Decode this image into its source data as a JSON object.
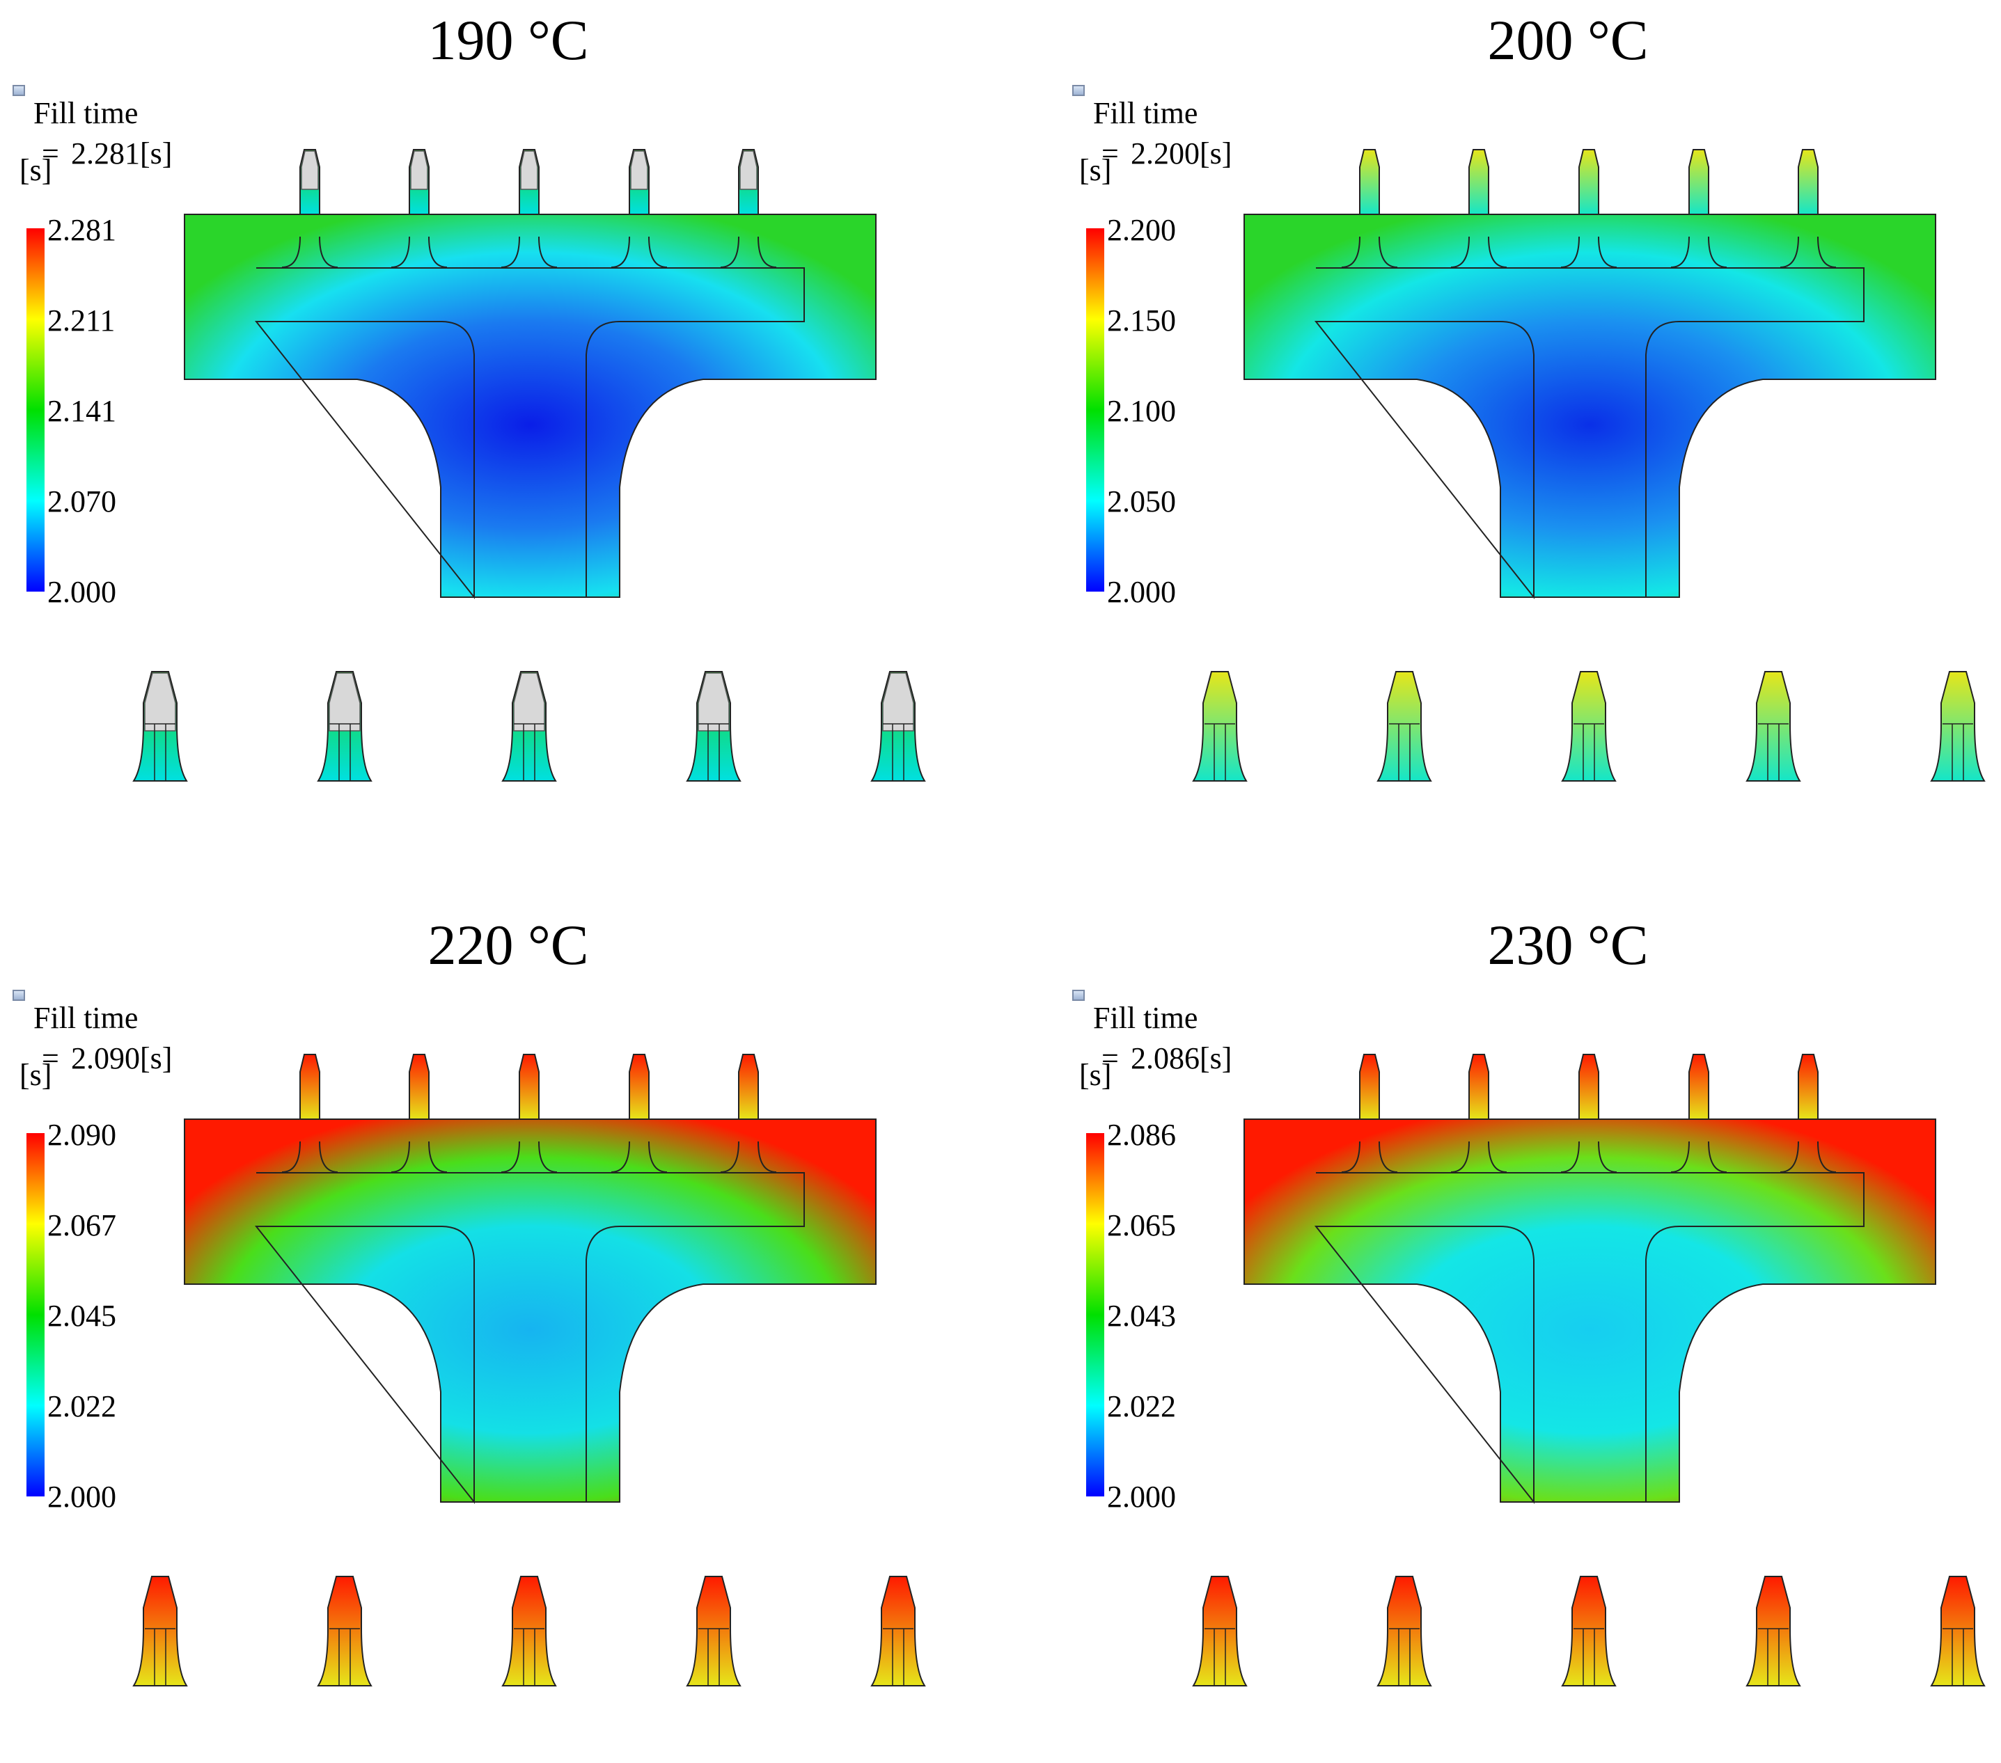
{
  "panels": [
    {
      "title": "190 °C",
      "legend": {
        "title": "Fill time",
        "unit": "[s]",
        "eq": "=",
        "value": "2.281[s]",
        "ticks": [
          "2.281",
          "2.211",
          "2.141",
          "2.070",
          "2.000"
        ]
      },
      "colors": {
        "body_center": "#0a1ee8",
        "body_mid": "#1a7af0",
        "body_edge": "#17e0f0",
        "arm_outer": "#2ad52a",
        "tip_low": "#00e0e0",
        "tip_high": "#22d62a",
        "tip_unfilled": "#d8d8d8",
        "tip_top_unfilled": true
      }
    },
    {
      "title": "200 °C",
      "legend": {
        "title": "Fill time",
        "unit": "[s]",
        "eq": "=",
        "value": "2.200[s]",
        "ticks": [
          "2.200",
          "2.150",
          "2.100",
          "2.050",
          "2.000"
        ]
      },
      "colors": {
        "body_center": "#0a30e8",
        "body_mid": "#1a90f0",
        "body_edge": "#14e6e6",
        "arm_outer": "#2ad52a",
        "tip_low": "#14e6c8",
        "tip_high": "#e6e61a",
        "tip_unfilled": "#d8d8d8",
        "tip_top_unfilled": false
      }
    },
    {
      "title": "220 °C",
      "legend": {
        "title": "Fill time",
        "unit": "[s]",
        "eq": "=",
        "value": "2.090[s]",
        "ticks": [
          "2.090",
          "2.067",
          "2.045",
          "2.022",
          "2.000"
        ]
      },
      "colors": {
        "body_center": "#16b4f0",
        "body_mid": "#14e0e6",
        "body_edge": "#4ade1a",
        "arm_outer": "#ff1a00",
        "tip_low": "#e6e61a",
        "tip_high": "#ff1a00",
        "tip_unfilled": "#d8d8d8",
        "tip_top_unfilled": false
      }
    },
    {
      "title": "230 °C",
      "legend": {
        "title": "Fill time",
        "unit": "[s]",
        "eq": "=",
        "value": "2.086[s]",
        "ticks": [
          "2.086",
          "2.065",
          "2.043",
          "2.022",
          "2.000"
        ]
      },
      "colors": {
        "body_center": "#16cef0",
        "body_mid": "#14e6e6",
        "body_edge": "#6ae01a",
        "arm_outer": "#ff1a00",
        "tip_low": "#e6e61a",
        "tip_high": "#ff1a00",
        "tip_unfilled": "#d8d8d8",
        "tip_top_unfilled": false
      }
    }
  ]
}
